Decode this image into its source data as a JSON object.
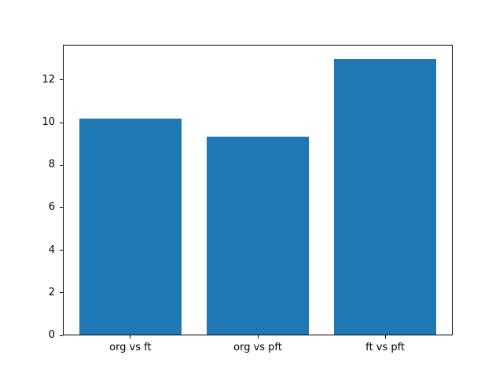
{
  "chart_data": {
    "type": "bar",
    "categories": [
      "org vs ft",
      "org vs pft",
      "ft vs pft"
    ],
    "values": [
      10.2,
      9.35,
      13.0
    ],
    "title": "",
    "xlabel": "",
    "ylabel": "",
    "yticks": [
      0,
      2,
      4,
      6,
      8,
      10,
      12
    ],
    "ytick_labels": [
      "0",
      "2",
      "4",
      "6",
      "8",
      "10",
      "12"
    ],
    "ylim": [
      0,
      13.66
    ],
    "xlim": [
      -0.53,
      2.53
    ],
    "bar_width": 0.8,
    "bar_color": "#1f77b4",
    "axis_color": "#000000",
    "text_color": "#000000",
    "background": "#ffffff",
    "grid": false,
    "legend": null
  }
}
